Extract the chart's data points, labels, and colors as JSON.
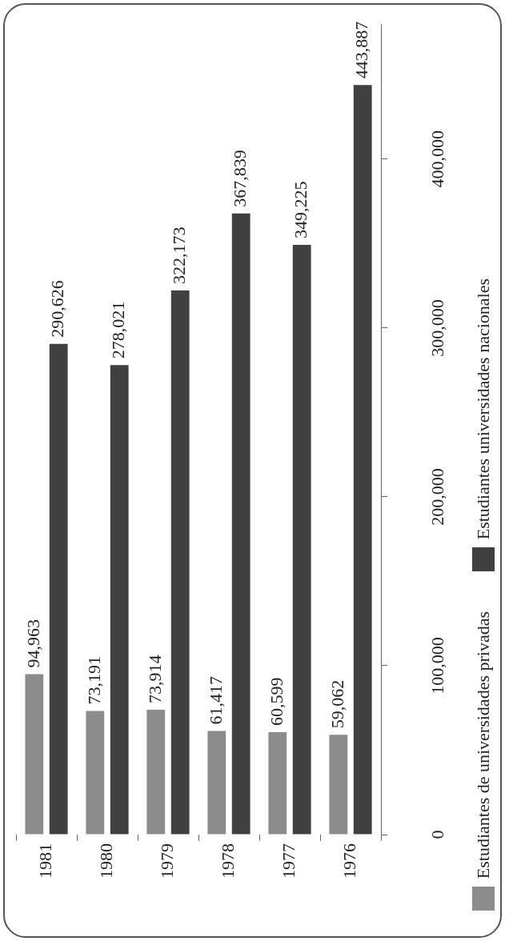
{
  "chart_data": {
    "type": "bar",
    "categories": [
      "1981",
      "1980",
      "1979",
      "1978",
      "1977",
      "1976"
    ],
    "series": [
      {
        "name": "Estudiantes de universidades privadas",
        "color": "#8c8c8c",
        "values": [
          94963,
          73191,
          73914,
          61417,
          60599,
          59062
        ],
        "value_labels": [
          "94,963",
          "73,191",
          "73,914",
          "61,417",
          "60,599",
          "59,062"
        ]
      },
      {
        "name": "Estudiantes universidades nacionales",
        "color": "#404040",
        "values": [
          290626,
          278021,
          322173,
          367839,
          349225,
          443887
        ],
        "value_labels": [
          "290,626",
          "278,021",
          "322,173",
          "367,839",
          "349,225",
          "443,887"
        ]
      }
    ],
    "ylim": [
      0,
      480000
    ],
    "yticks": [
      0,
      {
        "value": 100000,
        "label": "100,000"
      },
      {
        "value": 200000,
        "label": "200,000"
      },
      {
        "value": 300000,
        "label": "300,000"
      },
      {
        "value": 400000,
        "label": "400,000"
      }
    ],
    "grid": false,
    "legend": "right"
  }
}
